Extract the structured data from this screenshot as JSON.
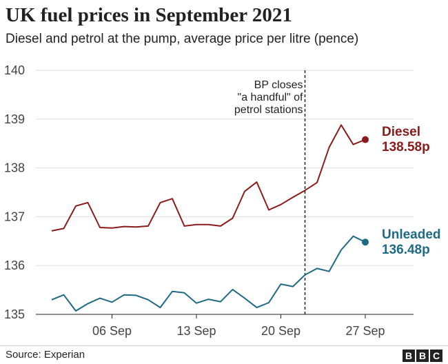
{
  "header": {
    "title": "UK fuel prices in September 2021",
    "subtitle": "Diesel and petrol at the pump, average price per litre (pence)"
  },
  "footer": {
    "source": "Source: Experian",
    "logo_letters": [
      "B",
      "B",
      "C"
    ]
  },
  "colors": {
    "diesel": "#8b1a1a",
    "unleaded": "#1d6a85",
    "grid": "#dddddd",
    "axis": "#222222",
    "annotation_line": "#222222"
  },
  "chart_data": {
    "type": "line",
    "title": "UK fuel prices in September 2021",
    "subtitle": "Diesel and petrol at the pump, average price per litre (pence)",
    "xlabel": "",
    "ylabel": "",
    "xlim": [
      "2021-09-01",
      "2021-09-28"
    ],
    "ylim": [
      135,
      140
    ],
    "yticks": [
      135,
      136,
      137,
      138,
      139,
      140
    ],
    "ytick_labels": [
      "135",
      "136",
      "137",
      "138",
      "139",
      "140"
    ],
    "xticks": [
      "2021-09-06",
      "2021-09-13",
      "2021-09-20",
      "2021-09-27"
    ],
    "xtick_labels": [
      "06 Sep",
      "13 Sep",
      "20 Sep",
      "27 Sep"
    ],
    "grid": "horizontal",
    "legend": "direct labels at line ends",
    "x": [
      "2021-09-01",
      "2021-09-02",
      "2021-09-03",
      "2021-09-04",
      "2021-09-05",
      "2021-09-06",
      "2021-09-07",
      "2021-09-08",
      "2021-09-09",
      "2021-09-10",
      "2021-09-11",
      "2021-09-12",
      "2021-09-13",
      "2021-09-14",
      "2021-09-15",
      "2021-09-16",
      "2021-09-17",
      "2021-09-18",
      "2021-09-19",
      "2021-09-20",
      "2021-09-21",
      "2021-09-22",
      "2021-09-23",
      "2021-09-24",
      "2021-09-25",
      "2021-09-26",
      "2021-09-27"
    ],
    "series": [
      {
        "name": "Diesel",
        "end_label": "138.58p",
        "color": "#8b1a1a",
        "values": [
          136.71,
          136.76,
          137.22,
          137.29,
          136.78,
          136.77,
          136.8,
          136.79,
          136.81,
          137.29,
          137.37,
          136.81,
          136.84,
          136.84,
          136.81,
          136.97,
          137.52,
          137.71,
          137.14,
          137.25,
          137.4,
          137.54,
          137.7,
          138.42,
          138.88,
          138.48,
          138.58
        ]
      },
      {
        "name": "Unleaded",
        "end_label": "136.48p",
        "color": "#1d6a85",
        "values": [
          135.3,
          135.4,
          135.07,
          135.22,
          135.33,
          135.25,
          135.4,
          135.39,
          135.3,
          135.14,
          135.47,
          135.44,
          135.23,
          135.31,
          135.26,
          135.51,
          135.33,
          135.14,
          135.24,
          135.62,
          135.57,
          135.81,
          135.94,
          135.88,
          136.32,
          136.6,
          136.48
        ]
      }
    ],
    "annotations": [
      {
        "x": "2021-09-22",
        "style": "dashed vertical line",
        "lines": [
          "BP closes",
          "\"a handful\" of",
          "petrol stations"
        ]
      }
    ]
  }
}
